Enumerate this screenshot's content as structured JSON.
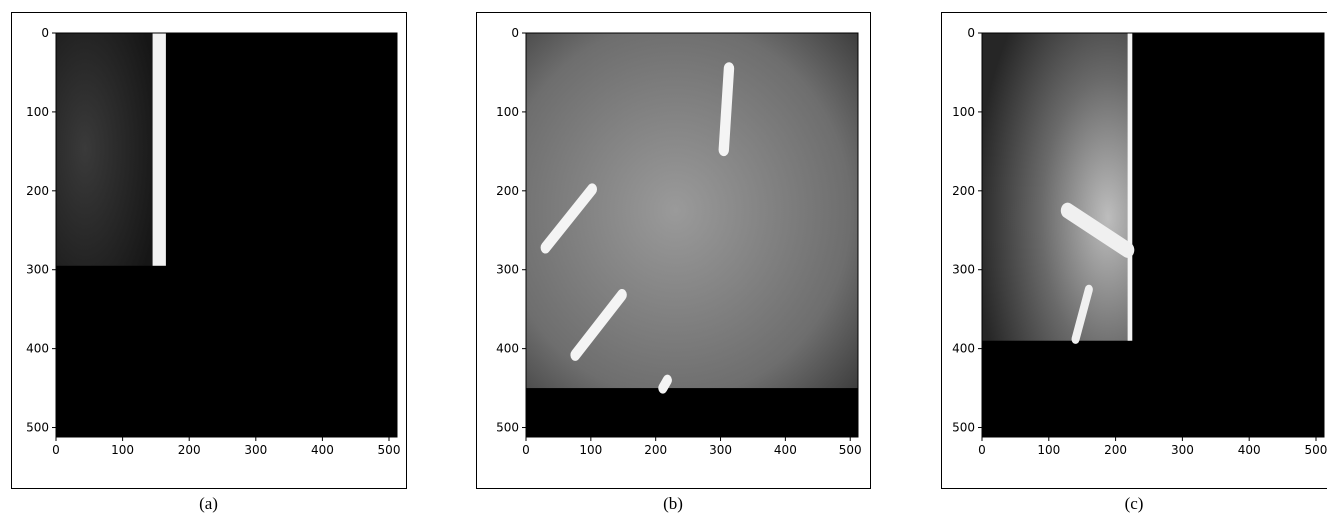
{
  "panels": [
    {
      "label": "(a)",
      "xlim": [
        0,
        512
      ],
      "ylim": [
        512,
        0
      ],
      "xticks": [
        0,
        100,
        200,
        300,
        400,
        500
      ],
      "yticks": [
        0,
        100,
        200,
        300,
        400,
        500
      ]
    },
    {
      "label": "(b)",
      "xlim": [
        0,
        512
      ],
      "ylim": [
        512,
        0
      ],
      "xticks": [
        0,
        100,
        200,
        300,
        400,
        500
      ],
      "yticks": [
        0,
        100,
        200,
        300,
        400,
        500
      ]
    },
    {
      "label": "(c)",
      "xlim": [
        0,
        512
      ],
      "ylim": [
        512,
        0
      ],
      "xticks": [
        0,
        100,
        200,
        300,
        400,
        500
      ],
      "yticks": [
        0,
        100,
        200,
        300,
        400,
        500
      ]
    }
  ]
}
